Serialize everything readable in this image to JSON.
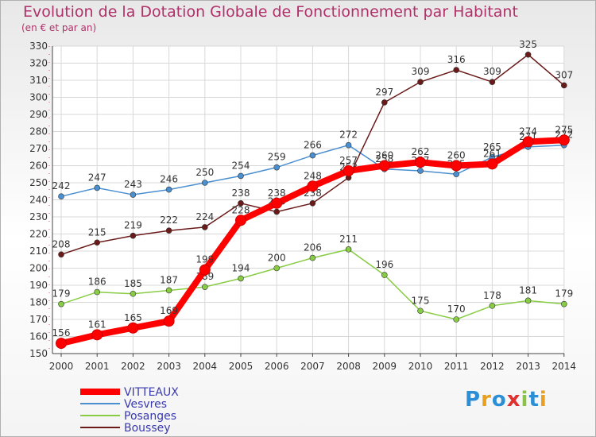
{
  "title": "Evolution de la Dotation Globale de Fonctionnement par Habitant",
  "subtitle": "(en € et par an)",
  "logo_text": "Proxiti",
  "chart_data": {
    "type": "line",
    "title": "Evolution de la Dotation Globale de Fonctionnement par Habitant",
    "subtitle": "(en € et par an)",
    "x": [
      "2000",
      "2001",
      "2002",
      "2003",
      "2004",
      "2005",
      "2006",
      "2007",
      "2008",
      "2009",
      "2010",
      "2011",
      "2012",
      "2013",
      "2014"
    ],
    "ylim": [
      150,
      330
    ],
    "yticks": [
      150,
      160,
      170,
      180,
      190,
      200,
      210,
      220,
      230,
      240,
      250,
      260,
      270,
      280,
      290,
      300,
      310,
      320,
      330
    ],
    "grid": true,
    "legend_position": "bottom-left",
    "series": [
      {
        "name": "VITTEAUX",
        "color": "#ff0000",
        "values": [
          156,
          161,
          165,
          169,
          199,
          228,
          238,
          248,
          257,
          260,
          262,
          260,
          261,
          274,
          275
        ]
      },
      {
        "name": "Vesvres",
        "color": "#4a8fd0",
        "values": [
          242,
          247,
          243,
          246,
          250,
          254,
          259,
          266,
          272,
          258,
          257,
          255,
          265,
          271,
          272
        ]
      },
      {
        "name": "Posanges",
        "color": "#88cc44",
        "values": [
          179,
          186,
          185,
          187,
          189,
          194,
          200,
          206,
          211,
          196,
          175,
          170,
          178,
          181,
          179
        ]
      },
      {
        "name": "Boussey",
        "color": "#6b1a1a",
        "values": [
          208,
          215,
          219,
          222,
          224,
          238,
          233,
          238,
          253,
          297,
          309,
          316,
          309,
          325,
          307
        ]
      }
    ]
  }
}
